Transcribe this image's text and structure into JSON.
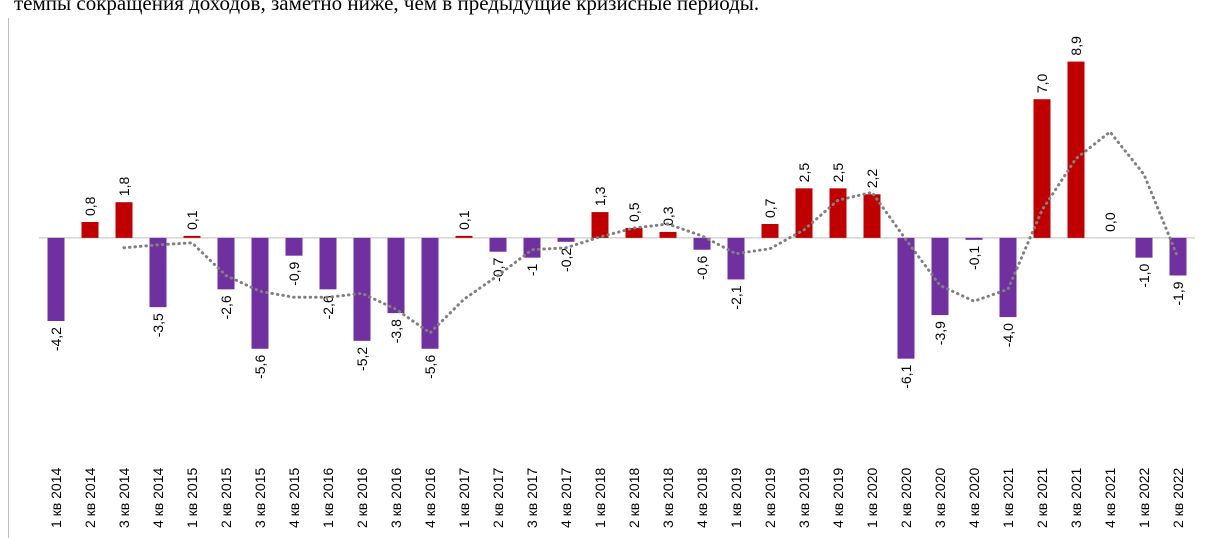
{
  "chart_data": {
    "type": "bar",
    "title": "темпы сокращения доходов, заметно ниже, чем в предыдущие кризисные периоды.",
    "categories": [
      "1 кв 2014",
      "2 кв 2014",
      "3 кв 2014",
      "4 кв 2014",
      "1 кв 2015",
      "2 кв 2015",
      "3 кв 2015",
      "4 кв 2015",
      "1 кв 2016",
      "2 кв 2016",
      "3 кв 2016",
      "4 кв 2016",
      "1 кв 2017",
      "2 кв 2017",
      "3 кв 2017",
      "4 кв 2017",
      "1 кв 2018",
      "2 кв 2018",
      "3 кв 2018",
      "4 кв 2018",
      "1 кв 2019",
      "2 кв 2019",
      "3 кв 2019",
      "4 кв 2019",
      "1 кв 2020",
      "2 кв 2020",
      "3 кв 2020",
      "4 кв 2020",
      "1 кв 2021",
      "2 кв 2021",
      "3 кв 2021",
      "4 кв 2021",
      "1 кв 2022",
      "2 кв 2022"
    ],
    "values": [
      -4.2,
      0.8,
      1.8,
      -3.5,
      0.1,
      -2.6,
      -5.6,
      -0.9,
      -2.6,
      -5.2,
      -3.8,
      -5.6,
      0.1,
      -0.7,
      -1,
      -0.2,
      1.3,
      0.5,
      0.3,
      -0.6,
      -2.1,
      0.7,
      2.5,
      2.5,
      2.2,
      -6.1,
      -3.9,
      -0.1,
      -4.0,
      7.0,
      8.9,
      0.0,
      -1.0,
      -1.9
    ],
    "value_labels": [
      "-4,2",
      "0,8",
      "1,8",
      "-3,5",
      "0,1",
      "-2,6",
      "-5,6",
      "-0,9",
      "-2,6",
      "-5,2",
      "-3,8",
      "-5,6",
      "0,1",
      "-0,7",
      "-1",
      "-0,2",
      "1,3",
      "0,5",
      "0,3",
      "-0,6",
      "-2,1",
      "0,7",
      "2,5",
      "2,5",
      "2,2",
      "-6,1",
      "-3,9",
      "-0,1",
      "-4,0",
      "7,0",
      "8,9",
      "0,0",
      "-1,0",
      "-1,9"
    ],
    "positive_color": "#c00000",
    "negative_color": "#7030a0",
    "trend": {
      "color": "#808080",
      "values": [
        null,
        null,
        -0.5,
        -0.35,
        -0.25,
        -1.9,
        -2.7,
        -3.0,
        -3.0,
        -2.8,
        -3.6,
        -4.8,
        -3.1,
        -1.9,
        -0.6,
        -0.5,
        0.05,
        0.5,
        0.7,
        0.1,
        -0.8,
        -0.55,
        0.4,
        1.9,
        2.3,
        -0.1,
        -2.4,
        -3.2,
        -2.6,
        1.4,
        4.0,
        5.35,
        3.2,
        -1.0
      ]
    },
    "ylim": [
      -9.5,
      11
    ]
  }
}
